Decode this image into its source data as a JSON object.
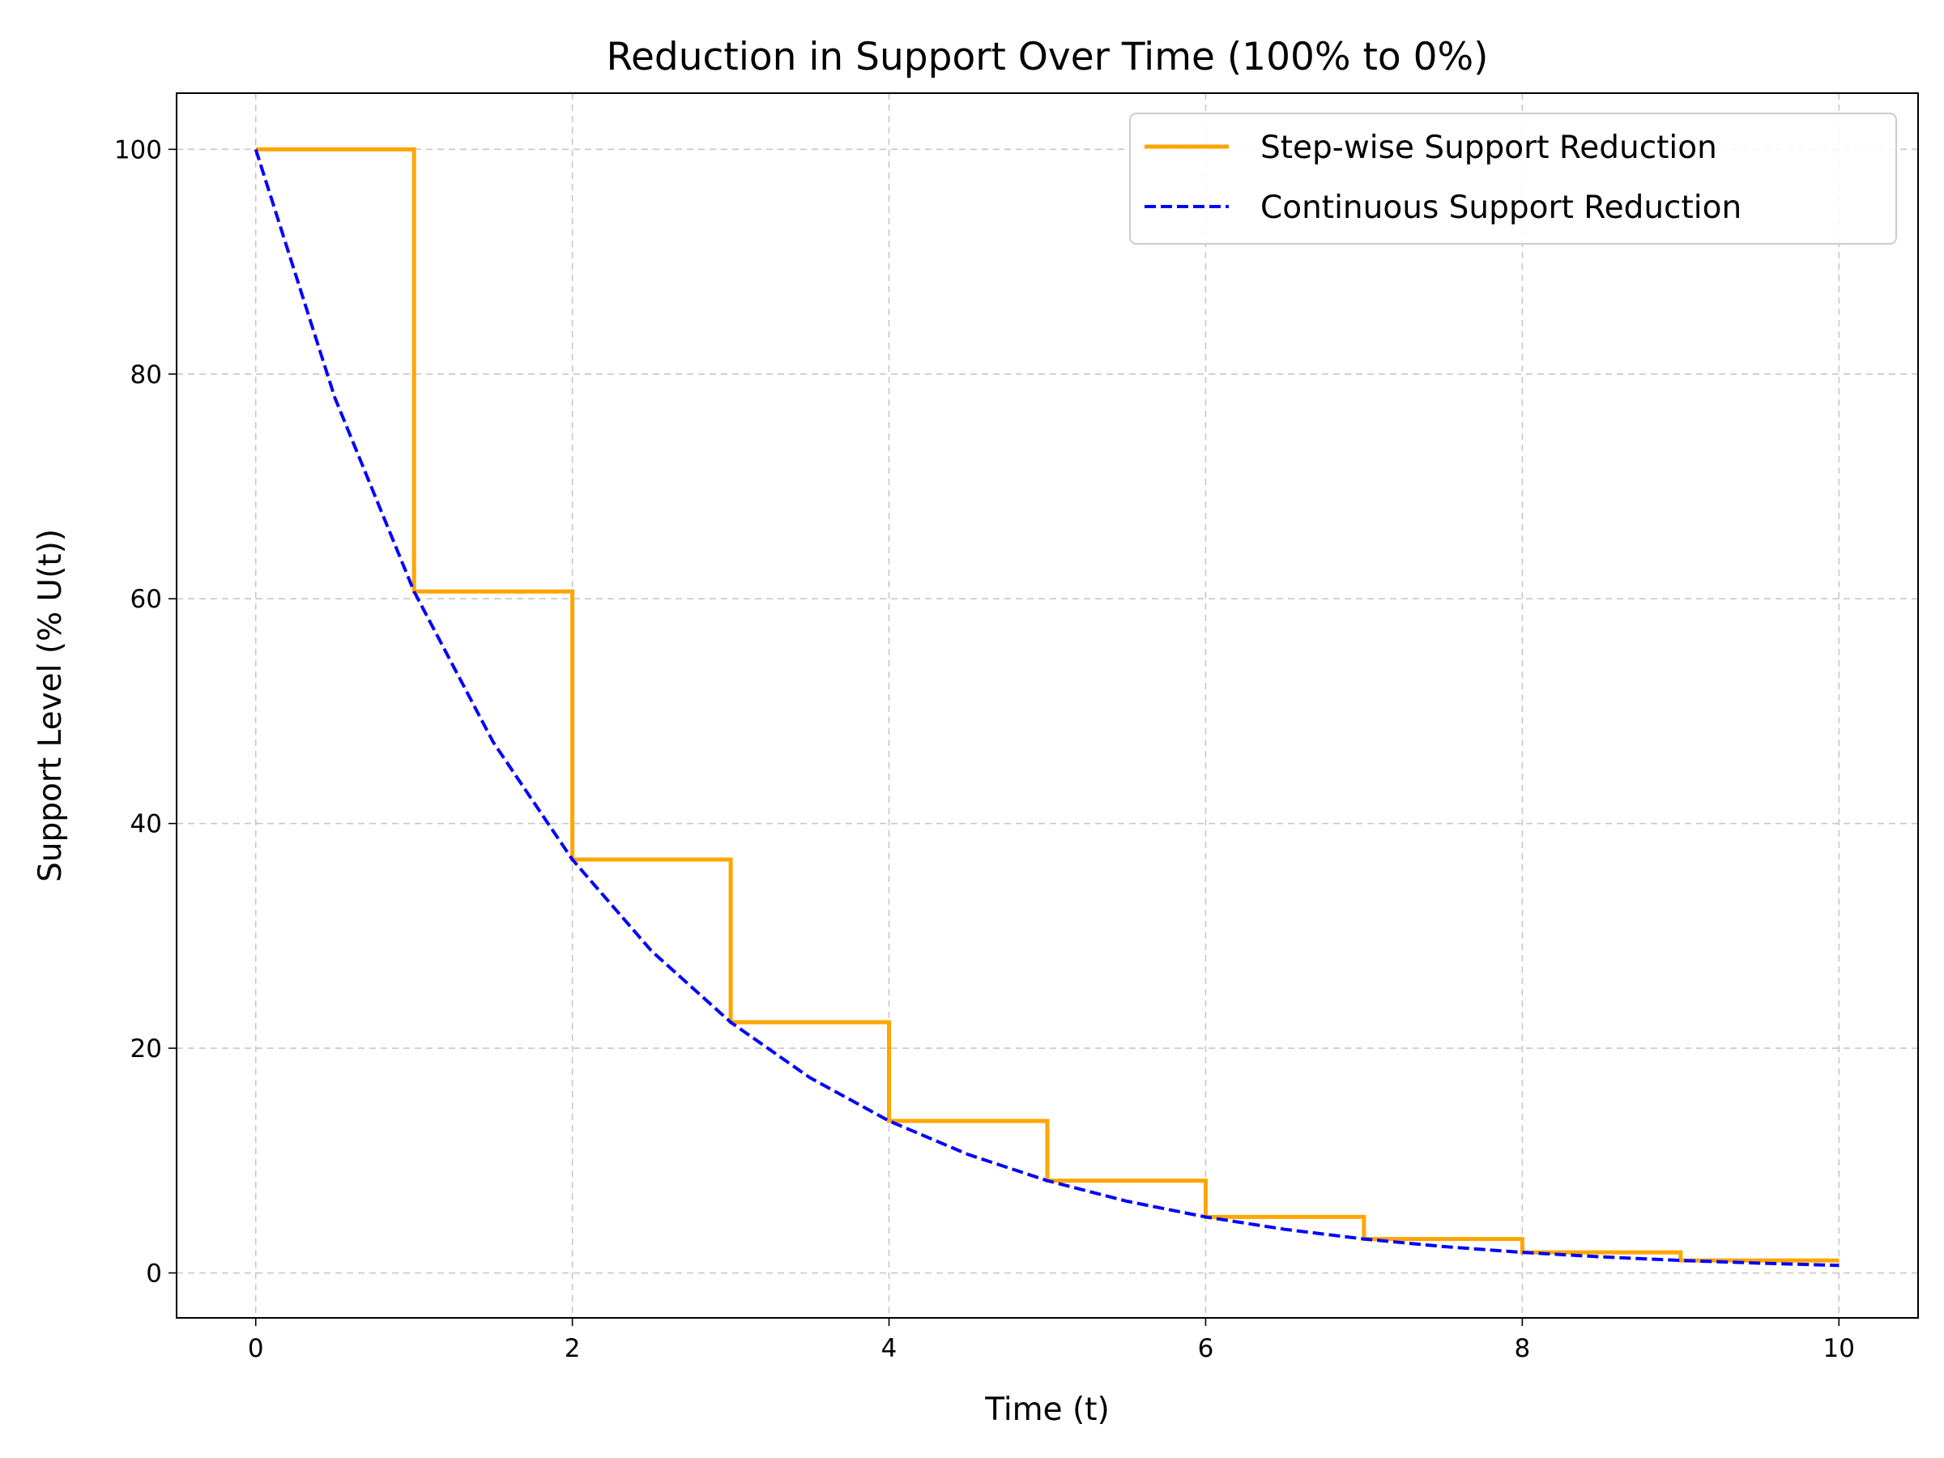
{
  "chart_data": {
    "type": "line",
    "title": "Reduction in Support Over Time (100% to 0%)",
    "xlabel": "Time (t)",
    "ylabel": "Support Level (% U(t))",
    "xlim": [
      -0.5,
      10.5
    ],
    "ylim": [
      -4,
      105
    ],
    "xticks": [
      0,
      2,
      4,
      6,
      8,
      10
    ],
    "yticks": [
      0,
      20,
      40,
      60,
      80,
      100
    ],
    "grid": true,
    "legend_position": "top-right",
    "series": [
      {
        "name": "Step-wise Support Reduction",
        "style": "step-post",
        "color": "#FFA500",
        "x": [
          0,
          1,
          2,
          3,
          4,
          5,
          6,
          7,
          8,
          9,
          10
        ],
        "y": [
          100,
          60.65,
          36.79,
          22.31,
          13.53,
          8.21,
          4.98,
          3.02,
          1.83,
          1.11,
          1.11
        ]
      },
      {
        "name": "Continuous Support Reduction",
        "style": "dashed",
        "color": "#0000FF",
        "x": [
          0,
          0.5,
          1,
          1.5,
          2,
          2.5,
          3,
          3.5,
          4,
          4.5,
          5,
          5.5,
          6,
          6.5,
          7,
          7.5,
          8,
          8.5,
          9,
          9.5,
          10
        ],
        "y": [
          100,
          77.88,
          60.65,
          47.24,
          36.79,
          28.65,
          22.31,
          17.38,
          13.53,
          10.54,
          8.21,
          6.39,
          4.98,
          3.88,
          3.02,
          2.35,
          1.83,
          1.43,
          1.11,
          0.87,
          0.67
        ]
      }
    ]
  }
}
